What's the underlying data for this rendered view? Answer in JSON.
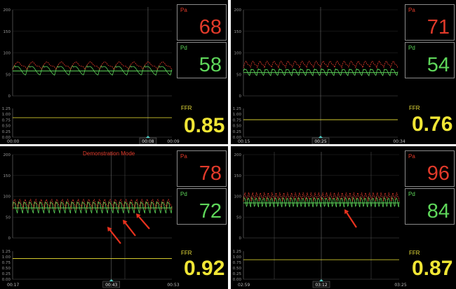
{
  "panels": [
    {
      "pa_label": "Pa",
      "pa_value": "68",
      "pd_label": "Pd",
      "pd_value": "58",
      "ffr_label": "FFR",
      "ffr_value": "0.85",
      "time_start": "00:00",
      "time_cursor": "00:08",
      "time_end": "00:09",
      "demo_text": ""
    },
    {
      "pa_label": "Pa",
      "pa_value": "71",
      "pd_label": "Pd",
      "pd_value": "54",
      "ffr_label": "FFR",
      "ffr_value": "0.76",
      "time_start": "00:15",
      "time_cursor": "00:25",
      "time_end": "00:34",
      "demo_text": ""
    },
    {
      "pa_label": "Pa",
      "pa_value": "78",
      "pd_label": "Pd",
      "pd_value": "72",
      "ffr_label": "FFR",
      "ffr_value": "0.92",
      "time_start": "00:17",
      "time_cursor": "00:43",
      "time_end": "00:53",
      "demo_text": "Demonstration Mode"
    },
    {
      "pa_label": "Pa",
      "pa_value": "96",
      "pd_label": "Pd",
      "pd_value": "84",
      "ffr_label": "FFR",
      "ffr_value": "0.87",
      "time_start": "02:59",
      "time_cursor": "03:12",
      "time_end": "03:25",
      "demo_text": ""
    }
  ],
  "colors": {
    "pa": "#e23a2a",
    "pd": "#5ed65a",
    "ffr": "#f0e635",
    "arrow": "#e8321e"
  },
  "chart_data": [
    {
      "type": "line",
      "pressure_axis": {
        "ticks": [
          "0",
          "50",
          "100",
          "150",
          "200"
        ],
        "ylim": [
          0,
          200
        ]
      },
      "ffr_axis": {
        "ticks": [
          "0.00",
          "0.25",
          "0.50",
          "0.75",
          "1.00",
          "1.25"
        ],
        "ylim": [
          0,
          1.25
        ]
      },
      "series": [
        {
          "name": "Pa",
          "mean": 68,
          "amplitude": 16,
          "beats": 11
        },
        {
          "name": "Pd",
          "mean": 58,
          "amplitude": 22,
          "beats": 11
        },
        {
          "name": "FFR",
          "value": 0.85
        }
      ],
      "x": [
        "00:00",
        "00:08",
        "00:09"
      ],
      "cursor_fraction": 0.85
    },
    {
      "type": "line",
      "pressure_axis": {
        "ticks": [
          "0",
          "50",
          "100",
          "150",
          "200"
        ],
        "ylim": [
          0,
          200
        ]
      },
      "ffr_axis": {
        "ticks": [
          "0.00",
          "0.25",
          "0.50",
          "0.75",
          "1.00",
          "1.25"
        ],
        "ylim": [
          0,
          1.25
        ]
      },
      "series": [
        {
          "name": "Pa",
          "mean": 71,
          "amplitude": 14,
          "beats": 22
        },
        {
          "name": "Pd",
          "mean": 54,
          "amplitude": 16,
          "beats": 22
        },
        {
          "name": "FFR",
          "value": 0.76
        }
      ],
      "x": [
        "00:15",
        "00:25",
        "00:34"
      ],
      "cursor_fraction": 0.5
    },
    {
      "type": "line",
      "pressure_axis": {
        "ticks": [
          "0",
          "50",
          "100",
          "150",
          "200"
        ],
        "ylim": [
          0,
          200
        ]
      },
      "ffr_axis": {
        "ticks": [
          "0.00",
          "0.25",
          "0.50",
          "0.75",
          "1.00",
          "1.25"
        ],
        "ylim": [
          0,
          1.25
        ]
      },
      "series": [
        {
          "name": "Pa",
          "mean": 78,
          "amplitude": 22,
          "beats": 30
        },
        {
          "name": "Pd",
          "mean": 72,
          "amplitude": 28,
          "beats": 30
        },
        {
          "name": "FFR",
          "value": 0.92
        }
      ],
      "x": [
        "00:17",
        "00:43",
        "00:53"
      ],
      "cursor_fraction": 0.62
    },
    {
      "type": "line",
      "pressure_axis": {
        "ticks": [
          "0",
          "50",
          "100",
          "150",
          "200"
        ],
        "ylim": [
          0,
          200
        ]
      },
      "ffr_axis": {
        "ticks": [
          "0.00",
          "0.25",
          "0.50",
          "0.75",
          "1.00",
          "1.25"
        ],
        "ylim": [
          0,
          1.25
        ]
      },
      "series": [
        {
          "name": "Pa",
          "mean": 96,
          "amplitude": 18,
          "beats": 40
        },
        {
          "name": "Pd",
          "mean": 84,
          "amplitude": 24,
          "beats": 40
        },
        {
          "name": "FFR",
          "value": 0.87
        }
      ],
      "x": [
        "02:59",
        "03:12",
        "03:25"
      ],
      "cursor_fraction": 0.5
    }
  ]
}
